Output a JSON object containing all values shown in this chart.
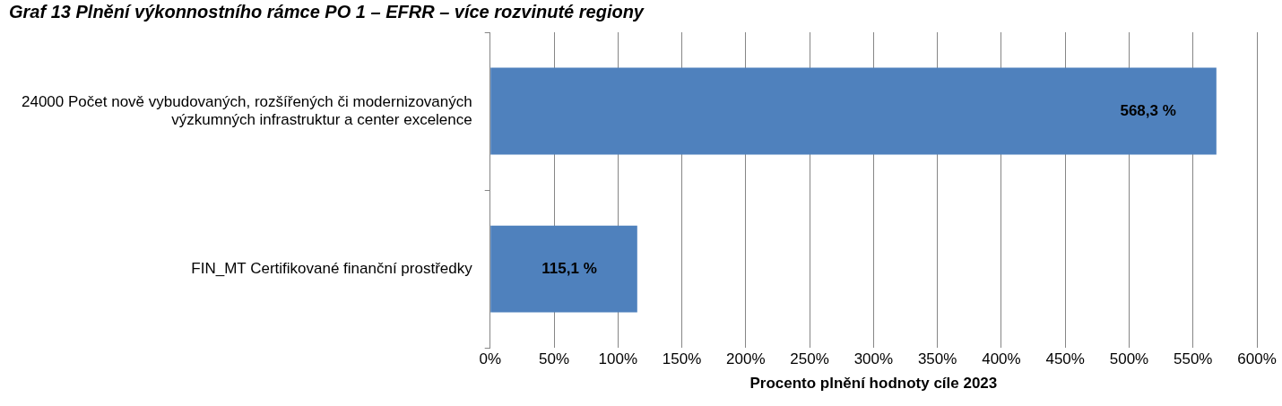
{
  "chart_data": {
    "type": "bar",
    "orientation": "horizontal",
    "title": "Graf 13 Plnění výkonnostního rámce PO 1 – EFRR – více rozvinuté regiony",
    "categories": [
      "24000 Počet nově vybudovaných, rozšířených či modernizovaných výzkumných infrastruktur a center excelence",
      "FIN_MT Certifikované finanční prostředky"
    ],
    "values": [
      568.3,
      115.1
    ],
    "value_labels": [
      "568,3 %",
      "115,1 %"
    ],
    "color": "#4f81bd",
    "xlabel": "Procento plnění hodnoty cíle 2023",
    "xlim": [
      0,
      600
    ],
    "xticks": [
      {
        "value": 0,
        "label": "0%"
      },
      {
        "value": 50,
        "label": "50%"
      },
      {
        "value": 100,
        "label": "100%"
      },
      {
        "value": 150,
        "label": "150%"
      },
      {
        "value": 200,
        "label": "200%"
      },
      {
        "value": 250,
        "label": "250%"
      },
      {
        "value": 300,
        "label": "300%"
      },
      {
        "value": 350,
        "label": "350%"
      },
      {
        "value": 400,
        "label": "400%"
      },
      {
        "value": 450,
        "label": "450%"
      },
      {
        "value": 500,
        "label": "500%"
      },
      {
        "value": 550,
        "label": "550%"
      },
      {
        "value": 600,
        "label": "600%"
      }
    ],
    "grid": "x",
    "legend": false
  }
}
